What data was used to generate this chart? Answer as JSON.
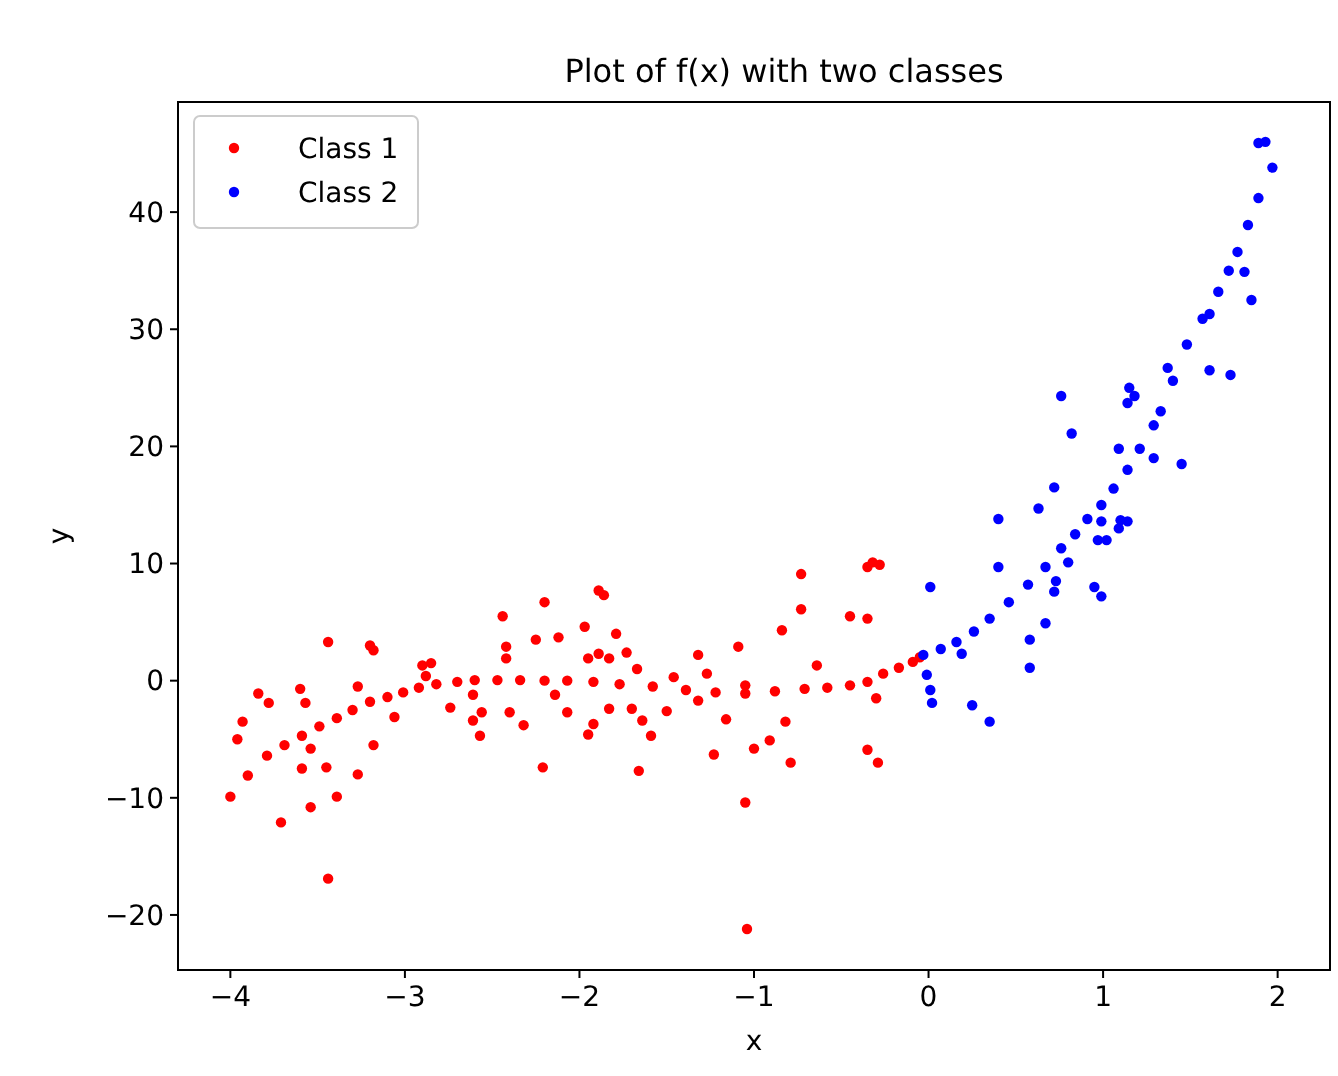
{
  "chart_data": {
    "type": "scatter",
    "title": "Plot of f(x) with two classes",
    "xlabel": "x",
    "ylabel": "y",
    "xlim": [
      -4.3,
      2.3
    ],
    "ylim": [
      -24.7,
      49.4
    ],
    "xticks": [
      {
        "value": -4,
        "label": "−4"
      },
      {
        "value": -3,
        "label": "−3"
      },
      {
        "value": -2,
        "label": "−2"
      },
      {
        "value": -1,
        "label": "−1"
      },
      0,
      1,
      2
    ],
    "yticks": [
      {
        "value": -20,
        "label": "−20"
      },
      {
        "value": -10,
        "label": "−10"
      },
      0,
      10,
      20,
      30,
      40
    ],
    "legend": "top left",
    "marker": "circle",
    "grid": false,
    "series": [
      {
        "name": "Class 1",
        "color": "#ff0000",
        "x": [
          -4.0,
          -3.9,
          -3.79,
          -3.69,
          -3.59,
          -3.49,
          -3.39,
          -3.3,
          -3.2,
          -3.1,
          -3.01,
          -2.92,
          -2.82,
          -2.7,
          -2.6,
          -2.47,
          -2.34,
          -2.2,
          -2.07,
          -1.92,
          -1.77,
          -1.58,
          -1.39,
          -1.22,
          -1.05,
          -0.88,
          -0.71,
          -0.58,
          -0.45,
          -0.35,
          -0.26,
          -0.17,
          -0.09,
          -0.05,
          -3.44,
          -3.2,
          -3.18,
          -3.84,
          -3.78,
          -3.93,
          -3.96,
          -3.6,
          -3.57,
          -3.54,
          -3.59,
          -3.45,
          -3.54,
          -3.71,
          -3.39,
          -3.44,
          -3.27,
          -3.18,
          -3.27,
          -3.06,
          -2.9,
          -2.85,
          -2.88,
          -2.74,
          -2.61,
          -2.61,
          -2.56,
          -2.57,
          -2.44,
          -2.42,
          -2.42,
          -2.4,
          -2.32,
          -2.25,
          -2.2,
          -2.12,
          -2.21,
          -2.14,
          -2.07,
          -1.97,
          -1.95,
          -1.89,
          -1.83,
          -1.89,
          -1.86,
          -1.79,
          -1.73,
          -1.67,
          -1.92,
          -1.95,
          -1.83,
          -1.7,
          -1.64,
          -1.59,
          -1.66,
          -1.5,
          -1.46,
          -1.32,
          -1.27,
          -1.32,
          -1.16,
          -1.23,
          -1.09,
          -1.05,
          -1.0,
          -1.05,
          -1.04,
          -0.91,
          -0.82,
          -0.79,
          -0.84,
          -0.73,
          -0.73,
          -0.64,
          -0.45,
          -0.35,
          -0.35,
          -0.32,
          -0.28,
          -0.35,
          -0.29,
          -0.3
        ],
        "values": [
          -9.9,
          -8.1,
          -6.4,
          -5.5,
          -4.7,
          -3.9,
          -3.2,
          -2.5,
          -1.8,
          -1.4,
          -1.0,
          -0.6,
          -0.3,
          -0.1,
          0.05,
          0.05,
          0.05,
          0.0,
          0.0,
          -0.1,
          -0.3,
          -0.5,
          -0.8,
          -1.0,
          -1.1,
          -0.9,
          -0.7,
          -0.6,
          -0.4,
          -0.1,
          0.6,
          1.1,
          1.6,
          2.0,
          3.3,
          3.0,
          2.6,
          -1.1,
          -1.9,
          -3.5,
          -5.0,
          -0.7,
          -1.9,
          -5.8,
          -7.5,
          -7.4,
          -10.8,
          -12.1,
          -9.9,
          -16.9,
          -8.0,
          -5.5,
          -0.5,
          -3.1,
          1.3,
          1.5,
          0.4,
          -2.3,
          -1.2,
          -3.4,
          -2.7,
          -4.7,
          5.5,
          2.9,
          1.9,
          -2.7,
          -3.8,
          3.5,
          6.7,
          3.7,
          -7.4,
          -1.2,
          -2.7,
          4.6,
          1.9,
          2.3,
          1.9,
          7.7,
          7.3,
          4.0,
          2.4,
          1.0,
          -3.7,
          -4.6,
          -2.4,
          -2.4,
          -3.4,
          -4.7,
          -7.7,
          -2.6,
          0.3,
          2.2,
          0.6,
          -1.7,
          -3.3,
          -6.3,
          2.9,
          -0.4,
          -5.8,
          -10.4,
          -21.2,
          -5.1,
          -3.5,
          -7.0,
          4.3,
          6.1,
          9.1,
          1.3,
          5.5,
          5.3,
          9.7,
          10.1,
          9.9,
          -5.9,
          -7.0,
          -1.5
        ]
      },
      {
        "name": "Class 2",
        "color": "#0000ff",
        "x": [
          -0.03,
          0.07,
          0.16,
          0.26,
          0.35,
          0.46,
          0.57,
          0.67,
          0.76,
          0.84,
          0.91,
          0.99,
          1.06,
          1.14,
          1.21,
          1.29,
          1.33,
          1.4,
          1.48,
          1.57,
          1.66,
          1.72,
          1.77,
          1.83,
          1.89,
          1.97,
          1.93,
          1.89,
          0.01,
          -0.01,
          0.01,
          0.02,
          0.25,
          0.35,
          0.19,
          0.4,
          0.4,
          0.58,
          0.58,
          0.67,
          0.63,
          0.72,
          0.72,
          0.73,
          0.8,
          0.82,
          0.95,
          0.99,
          0.97,
          1.02,
          0.99,
          1.1,
          1.14,
          1.09,
          1.09,
          1.29,
          1.45,
          0.76,
          1.15,
          1.18,
          1.14,
          1.37,
          1.61,
          1.73,
          1.81,
          1.85,
          1.61
        ],
        "values": [
          2.2,
          2.7,
          3.3,
          4.2,
          5.3,
          6.7,
          8.2,
          9.7,
          11.3,
          12.5,
          13.8,
          15.0,
          16.4,
          18.0,
          19.8,
          21.8,
          23.0,
          25.6,
          28.7,
          30.9,
          33.2,
          35.0,
          36.6,
          38.9,
          41.2,
          43.8,
          46.0,
          45.9,
          8.0,
          0.5,
          -0.8,
          -1.9,
          -2.1,
          -3.5,
          2.3,
          13.8,
          9.7,
          3.5,
          1.1,
          4.9,
          14.7,
          16.5,
          7.6,
          8.5,
          10.1,
          21.1,
          8.0,
          7.2,
          12.0,
          12.0,
          13.6,
          13.7,
          13.6,
          13.0,
          19.8,
          19.0,
          18.5,
          24.3,
          25.0,
          24.3,
          23.7,
          26.7,
          26.5,
          26.1,
          34.9,
          32.5,
          31.3
        ]
      }
    ]
  }
}
